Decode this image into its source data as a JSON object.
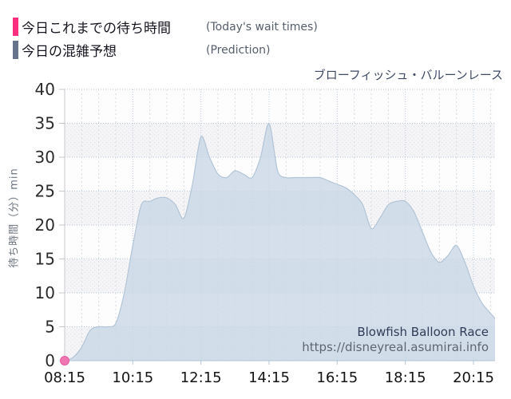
{
  "legend": {
    "today": {
      "label_jp": "今日これまでの待ち時間",
      "label_en": "(Today's wait times)",
      "color": "#ff2e7e"
    },
    "prediction": {
      "label_jp": "今日の混雑予想",
      "label_en": "(Prediction)",
      "color": "#66738a"
    }
  },
  "chart_title": "ブローフィッシュ・バルーンレース",
  "watermark": {
    "line1": "Blowfish Balloon Race",
    "line2": "https://disneyreal.asumirai.info"
  },
  "chart_data": {
    "type": "area",
    "title": "ブローフィッシュ・バルーンレース",
    "xlabel": "",
    "ylabel": "待ち時間（分）min",
    "ylim": [
      0,
      40
    ],
    "y_ticks": [
      0,
      5,
      10,
      15,
      20,
      25,
      30,
      35,
      40
    ],
    "xlim_hours": [
      8.25,
      21.0
    ],
    "x_tick_hours": [
      8.25,
      10.25,
      12.25,
      14.25,
      16.25,
      18.25,
      20.25
    ],
    "x_tick_labels": [
      "08:15",
      "10:15",
      "12:15",
      "14:15",
      "16:15",
      "18:15",
      "20:15"
    ],
    "grid": {
      "zebra_bands": true,
      "minor_vertical_every_hours": 0.5,
      "style": "dotted"
    },
    "legend_position": "top-left",
    "series": [
      {
        "name": "今日これまでの待ち時間 (Today's wait times)",
        "type": "point",
        "color": "#ee77b2",
        "points": [
          [
            8.25,
            0
          ]
        ]
      },
      {
        "name": "今日の混雑予想 (Prediction)",
        "type": "area",
        "fill": "#cbd8e6",
        "stroke": "#b2c5d7",
        "x_hours": [
          8.25,
          8.5,
          8.75,
          9.0,
          9.25,
          9.5,
          9.75,
          10.0,
          10.25,
          10.5,
          10.75,
          11.0,
          11.25,
          11.5,
          11.75,
          12.0,
          12.25,
          12.5,
          12.75,
          13.0,
          13.25,
          13.5,
          13.75,
          14.0,
          14.25,
          14.5,
          14.75,
          15.0,
          15.25,
          15.5,
          15.75,
          16.0,
          16.25,
          16.5,
          16.75,
          17.0,
          17.25,
          17.5,
          17.75,
          18.0,
          18.25,
          18.5,
          18.75,
          19.0,
          19.25,
          19.5,
          19.75,
          20.0,
          20.25,
          20.5,
          20.75,
          21.0
        ],
        "values": [
          0,
          0.5,
          2,
          4.5,
          5,
          5,
          5.5,
          10,
          17,
          23,
          23.5,
          24,
          24,
          23,
          21,
          26,
          33,
          30,
          27.5,
          27,
          28,
          27.5,
          27,
          30,
          35,
          28,
          27,
          27,
          27,
          27,
          27,
          26.5,
          26,
          25.5,
          24.5,
          23,
          19.5,
          21,
          23,
          23.5,
          23.5,
          22,
          19,
          16,
          14.5,
          15.5,
          17,
          14.5,
          11,
          8.5,
          7,
          5.5
        ]
      }
    ],
    "colors": {
      "band_plain": "#fdfdfe",
      "band_dotted_bg": "#f5f5f7",
      "band_dot": "#e6e6ea",
      "h_grid": "#b7c8d9",
      "v_grid_major": "#bccadb",
      "v_grid_minor": "#d8dbde",
      "axis_line": "#b7c7d6",
      "y_axis_line": "#c9c9cd",
      "tick_label_y": "#2b2b2b",
      "tick_label_x": "#141414"
    }
  }
}
